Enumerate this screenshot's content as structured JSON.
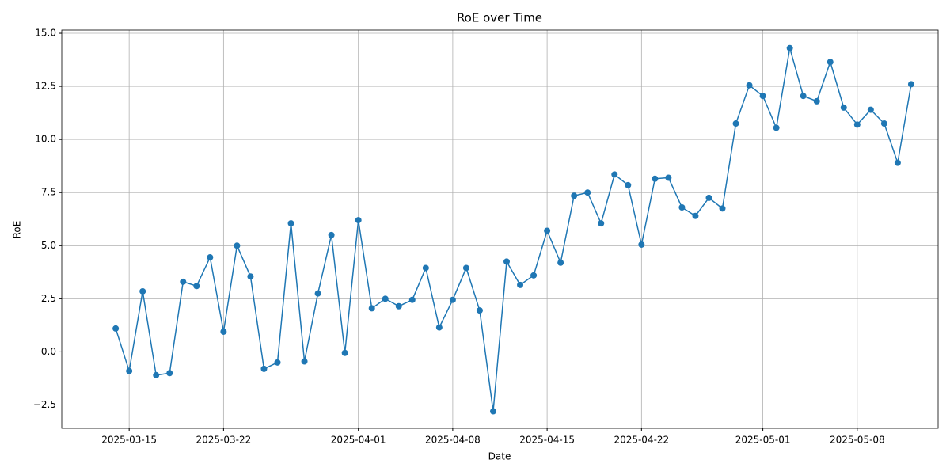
{
  "chart_data": {
    "type": "line",
    "title": "RoE over Time",
    "x_label": "Date",
    "y_label": "RoE",
    "color": "#1f77b4",
    "grid": true,
    "x": [
      "2025-03-14",
      "2025-03-15",
      "2025-03-16",
      "2025-03-17",
      "2025-03-18",
      "2025-03-19",
      "2025-03-20",
      "2025-03-21",
      "2025-03-22",
      "2025-03-23",
      "2025-03-24",
      "2025-03-25",
      "2025-03-26",
      "2025-03-27",
      "2025-03-28",
      "2025-03-29",
      "2025-03-30",
      "2025-03-31",
      "2025-04-01",
      "2025-04-02",
      "2025-04-03",
      "2025-04-04",
      "2025-04-05",
      "2025-04-06",
      "2025-04-07",
      "2025-04-08",
      "2025-04-09",
      "2025-04-10",
      "2025-04-11",
      "2025-04-12",
      "2025-04-13",
      "2025-04-14",
      "2025-04-15",
      "2025-04-16",
      "2025-04-17",
      "2025-04-18",
      "2025-04-19",
      "2025-04-20",
      "2025-04-21",
      "2025-04-22",
      "2025-04-23",
      "2025-04-24",
      "2025-04-25",
      "2025-04-26",
      "2025-04-27",
      "2025-04-28",
      "2025-04-29",
      "2025-04-30",
      "2025-05-01",
      "2025-05-02",
      "2025-05-03",
      "2025-05-04",
      "2025-05-05",
      "2025-05-06",
      "2025-05-07",
      "2025-05-08",
      "2025-05-09",
      "2025-05-10",
      "2025-05-11",
      "2025-05-12"
    ],
    "values": [
      1.1,
      -0.9,
      2.85,
      -1.1,
      -1.0,
      3.3,
      3.1,
      4.45,
      0.95,
      5.0,
      3.55,
      -0.8,
      -0.5,
      6.05,
      -0.45,
      2.75,
      5.5,
      -0.05,
      6.2,
      2.05,
      2.5,
      2.15,
      2.45,
      3.95,
      1.15,
      2.45,
      3.95,
      1.95,
      -2.8,
      4.25,
      3.15,
      3.6,
      5.7,
      4.2,
      7.35,
      7.5,
      6.05,
      8.35,
      7.85,
      5.05,
      8.15,
      8.2,
      6.8,
      6.4,
      7.25,
      6.75,
      10.75,
      12.55,
      12.05,
      10.55,
      14.3,
      12.05,
      11.8,
      13.65,
      11.5,
      10.7,
      11.4,
      10.75,
      8.9,
      12.6
    ],
    "xlim": [
      "2025-03-10",
      "2025-05-14"
    ],
    "xticks": [
      "2025-03-15",
      "2025-03-22",
      "2025-04-01",
      "2025-04-08",
      "2025-04-15",
      "2025-04-22",
      "2025-05-01",
      "2025-05-08"
    ],
    "ylim": [
      -3.6,
      15.15
    ],
    "yticks": [
      {
        "value": -2.5,
        "label": "−2.5"
      },
      {
        "value": 0,
        "label": "0.0"
      },
      {
        "value": 2.5,
        "label": "2.5"
      },
      {
        "value": 5,
        "label": "5.0"
      },
      {
        "value": 7.5,
        "label": "7.5"
      },
      {
        "value": 10,
        "label": "10.0"
      },
      {
        "value": 12.5,
        "label": "12.5"
      },
      {
        "value": 15,
        "label": "15.0"
      }
    ]
  }
}
